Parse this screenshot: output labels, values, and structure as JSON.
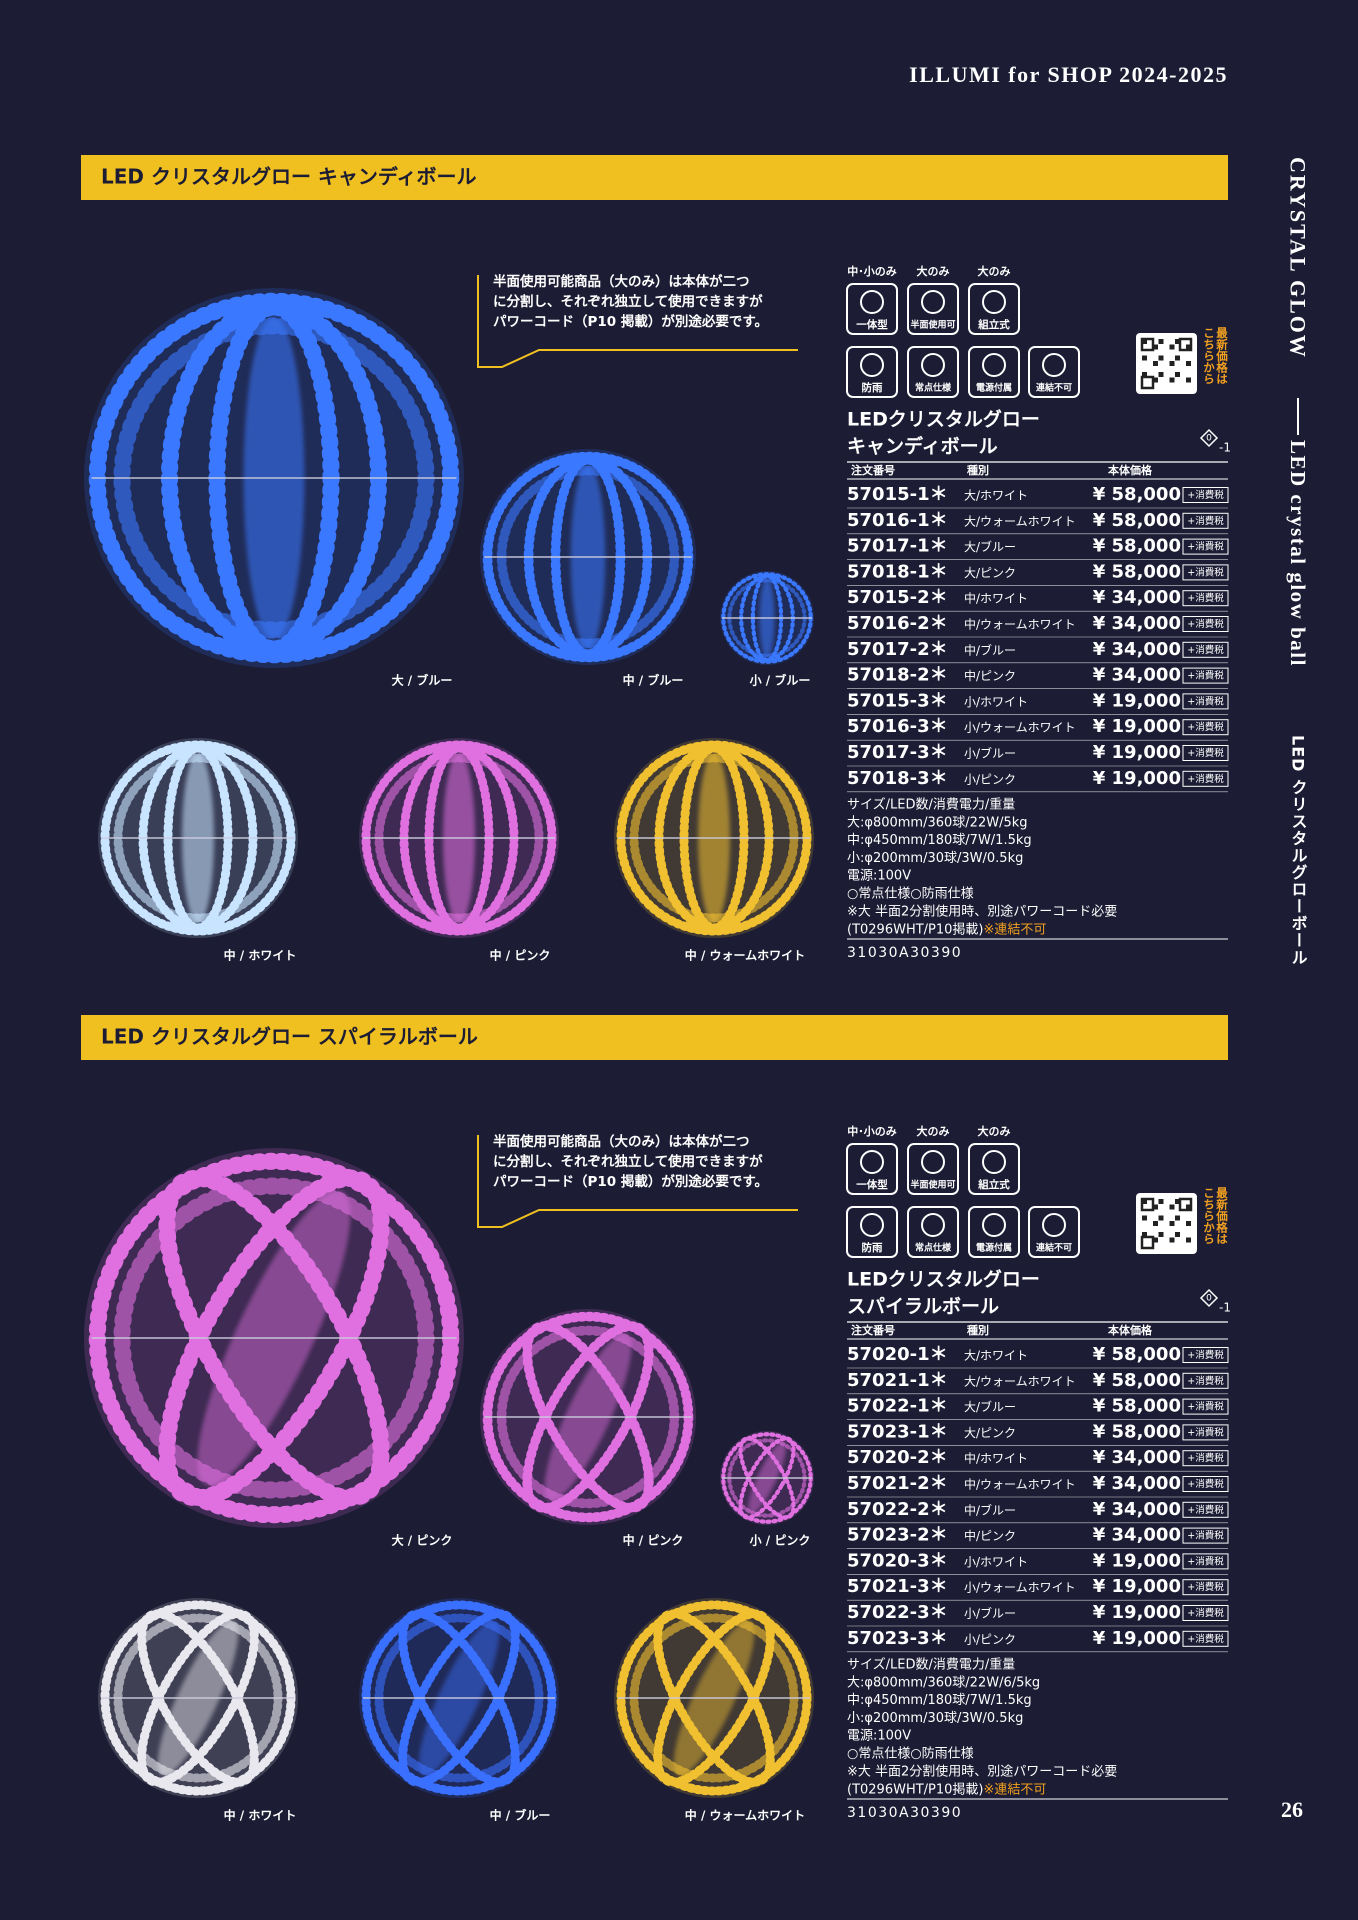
{
  "header": {
    "title": "ILLUMI for SHOP  2024-2025"
  },
  "side": {
    "en_title": "CRYSTAL GLOW",
    "en_subtitle": "LED crystal glow ball",
    "jp_subtitle": "LED クリスタルグローボール"
  },
  "page_number": "26",
  "sections": [
    {
      "banner": "LED クリスタルグロー キャンディボール",
      "note": [
        "半面使用可能商品（大のみ）は本体が二つ",
        "に分割し、それぞれ独立して使用できますが",
        "パワーコード（P10 掲載）が別途必要です。"
      ],
      "icon_scope": [
        "中･小のみ",
        "大のみ",
        "大のみ"
      ],
      "icons": [
        "一体型",
        "半面使用可",
        "組立式",
        "防雨",
        "常点仕様",
        "電源付属",
        "連結不可"
      ],
      "qr_label": [
        "最新価格は",
        "こちらから"
      ],
      "product_name": [
        "LEDクリスタルグロー",
        "キャンディボール"
      ],
      "badge_icon": "0",
      "badge": "-1",
      "table": {
        "headers": [
          "注文番号",
          "種別",
          "本体価格"
        ],
        "rows": [
          [
            "57015-1＊",
            "大/ホワイト",
            "¥ 58,000",
            "+消費税"
          ],
          [
            "57016-1＊",
            "大/ウォームホワイト",
            "¥ 58,000",
            "+消費税"
          ],
          [
            "57017-1＊",
            "大/ブルー",
            "¥ 58,000",
            "+消費税"
          ],
          [
            "57018-1＊",
            "大/ピンク",
            "¥ 58,000",
            "+消費税"
          ],
          [
            "57015-2＊",
            "中/ホワイト",
            "¥ 34,000",
            "+消費税"
          ],
          [
            "57016-2＊",
            "中/ウォームホワイト",
            "¥ 34,000",
            "+消費税"
          ],
          [
            "57017-2＊",
            "中/ブルー",
            "¥ 34,000",
            "+消費税"
          ],
          [
            "57018-2＊",
            "中/ピンク",
            "¥ 34,000",
            "+消費税"
          ],
          [
            "57015-3＊",
            "小/ホワイト",
            "¥ 19,000",
            "+消費税"
          ],
          [
            "57016-3＊",
            "小/ウォームホワイト",
            "¥ 19,000",
            "+消費税"
          ],
          [
            "57017-3＊",
            "小/ブルー",
            "¥ 19,000",
            "+消費税"
          ],
          [
            "57018-3＊",
            "小/ピンク",
            "¥ 19,000",
            "+消費税"
          ]
        ]
      },
      "specs": [
        "サイズ/LED数/消費電力/重量",
        "大:φ800mm/360球/22W/5kg",
        "中:φ450mm/180球/7W/1.5kg",
        "小:φ200mm/30球/3W/0.5kg",
        "電源:100V",
        "○常点仕様○防雨仕様",
        "※大 半面2分割使用時、別途パワーコード必要",
        "(T0296WHT/P10掲載)"
      ],
      "spec_warning": "※連結不可",
      "catalog_code": "31030A30390",
      "captions": [
        "大 / ブルー",
        "中 / ブルー",
        "小 / ブルー",
        "中 / ホワイト",
        "中 / ピンク",
        "中 / ウォームホワイト"
      ]
    },
    {
      "banner": "LED クリスタルグロー スパイラルボール",
      "note": [
        "半面使用可能商品（大のみ）は本体が二つ",
        "に分割し、それぞれ独立して使用できますが",
        "パワーコード（P10 掲載）が別途必要です。"
      ],
      "icon_scope": [
        "中･小のみ",
        "大のみ",
        "大のみ"
      ],
      "icons": [
        "一体型",
        "半面使用可",
        "組立式",
        "防雨",
        "常点仕様",
        "電源付属",
        "連結不可"
      ],
      "qr_label": [
        "最新価格は",
        "こちらから"
      ],
      "product_name": [
        "LEDクリスタルグロー",
        "スパイラルボール"
      ],
      "badge_icon": "0",
      "badge": "-1",
      "table": {
        "headers": [
          "注文番号",
          "種別",
          "本体価格"
        ],
        "rows": [
          [
            "57020-1＊",
            "大/ホワイト",
            "¥ 58,000",
            "+消費税"
          ],
          [
            "57021-1＊",
            "大/ウォームホワイト",
            "¥ 58,000",
            "+消費税"
          ],
          [
            "57022-1＊",
            "大/ブルー",
            "¥ 58,000",
            "+消費税"
          ],
          [
            "57023-1＊",
            "大/ピンク",
            "¥ 58,000",
            "+消費税"
          ],
          [
            "57020-2＊",
            "中/ホワイト",
            "¥ 34,000",
            "+消費税"
          ],
          [
            "57021-2＊",
            "中/ウォームホワイト",
            "¥ 34,000",
            "+消費税"
          ],
          [
            "57022-2＊",
            "中/ブルー",
            "¥ 34,000",
            "+消費税"
          ],
          [
            "57023-2＊",
            "中/ピンク",
            "¥ 34,000",
            "+消費税"
          ],
          [
            "57020-3＊",
            "小/ホワイト",
            "¥ 19,000",
            "+消費税"
          ],
          [
            "57021-3＊",
            "小/ウォームホワイト",
            "¥ 19,000",
            "+消費税"
          ],
          [
            "57022-3＊",
            "小/ブルー",
            "¥ 19,000",
            "+消費税"
          ],
          [
            "57023-3＊",
            "小/ピンク",
            "¥ 19,000",
            "+消費税"
          ]
        ]
      },
      "specs": [
        "サイズ/LED数/消費電力/重量",
        "大:φ800mm/360球/22W/6/5kg",
        "中:φ450mm/180球/7W/1.5kg",
        "小:φ200mm/30球/3W/0.5kg",
        "電源:100V",
        "○常点仕様○防雨仕様",
        "※大 半面2分割使用時、別途パワーコード必要",
        "(T0296WHT/P10掲載)"
      ],
      "spec_warning": "※連結不可",
      "catalog_code": "31030A30390",
      "captions": [
        "大 / ピンク",
        "中 / ピンク",
        "小 / ピンク",
        "中 / ホワイト",
        "中 / ブルー",
        "中 / ウォームホワイト"
      ]
    }
  ]
}
